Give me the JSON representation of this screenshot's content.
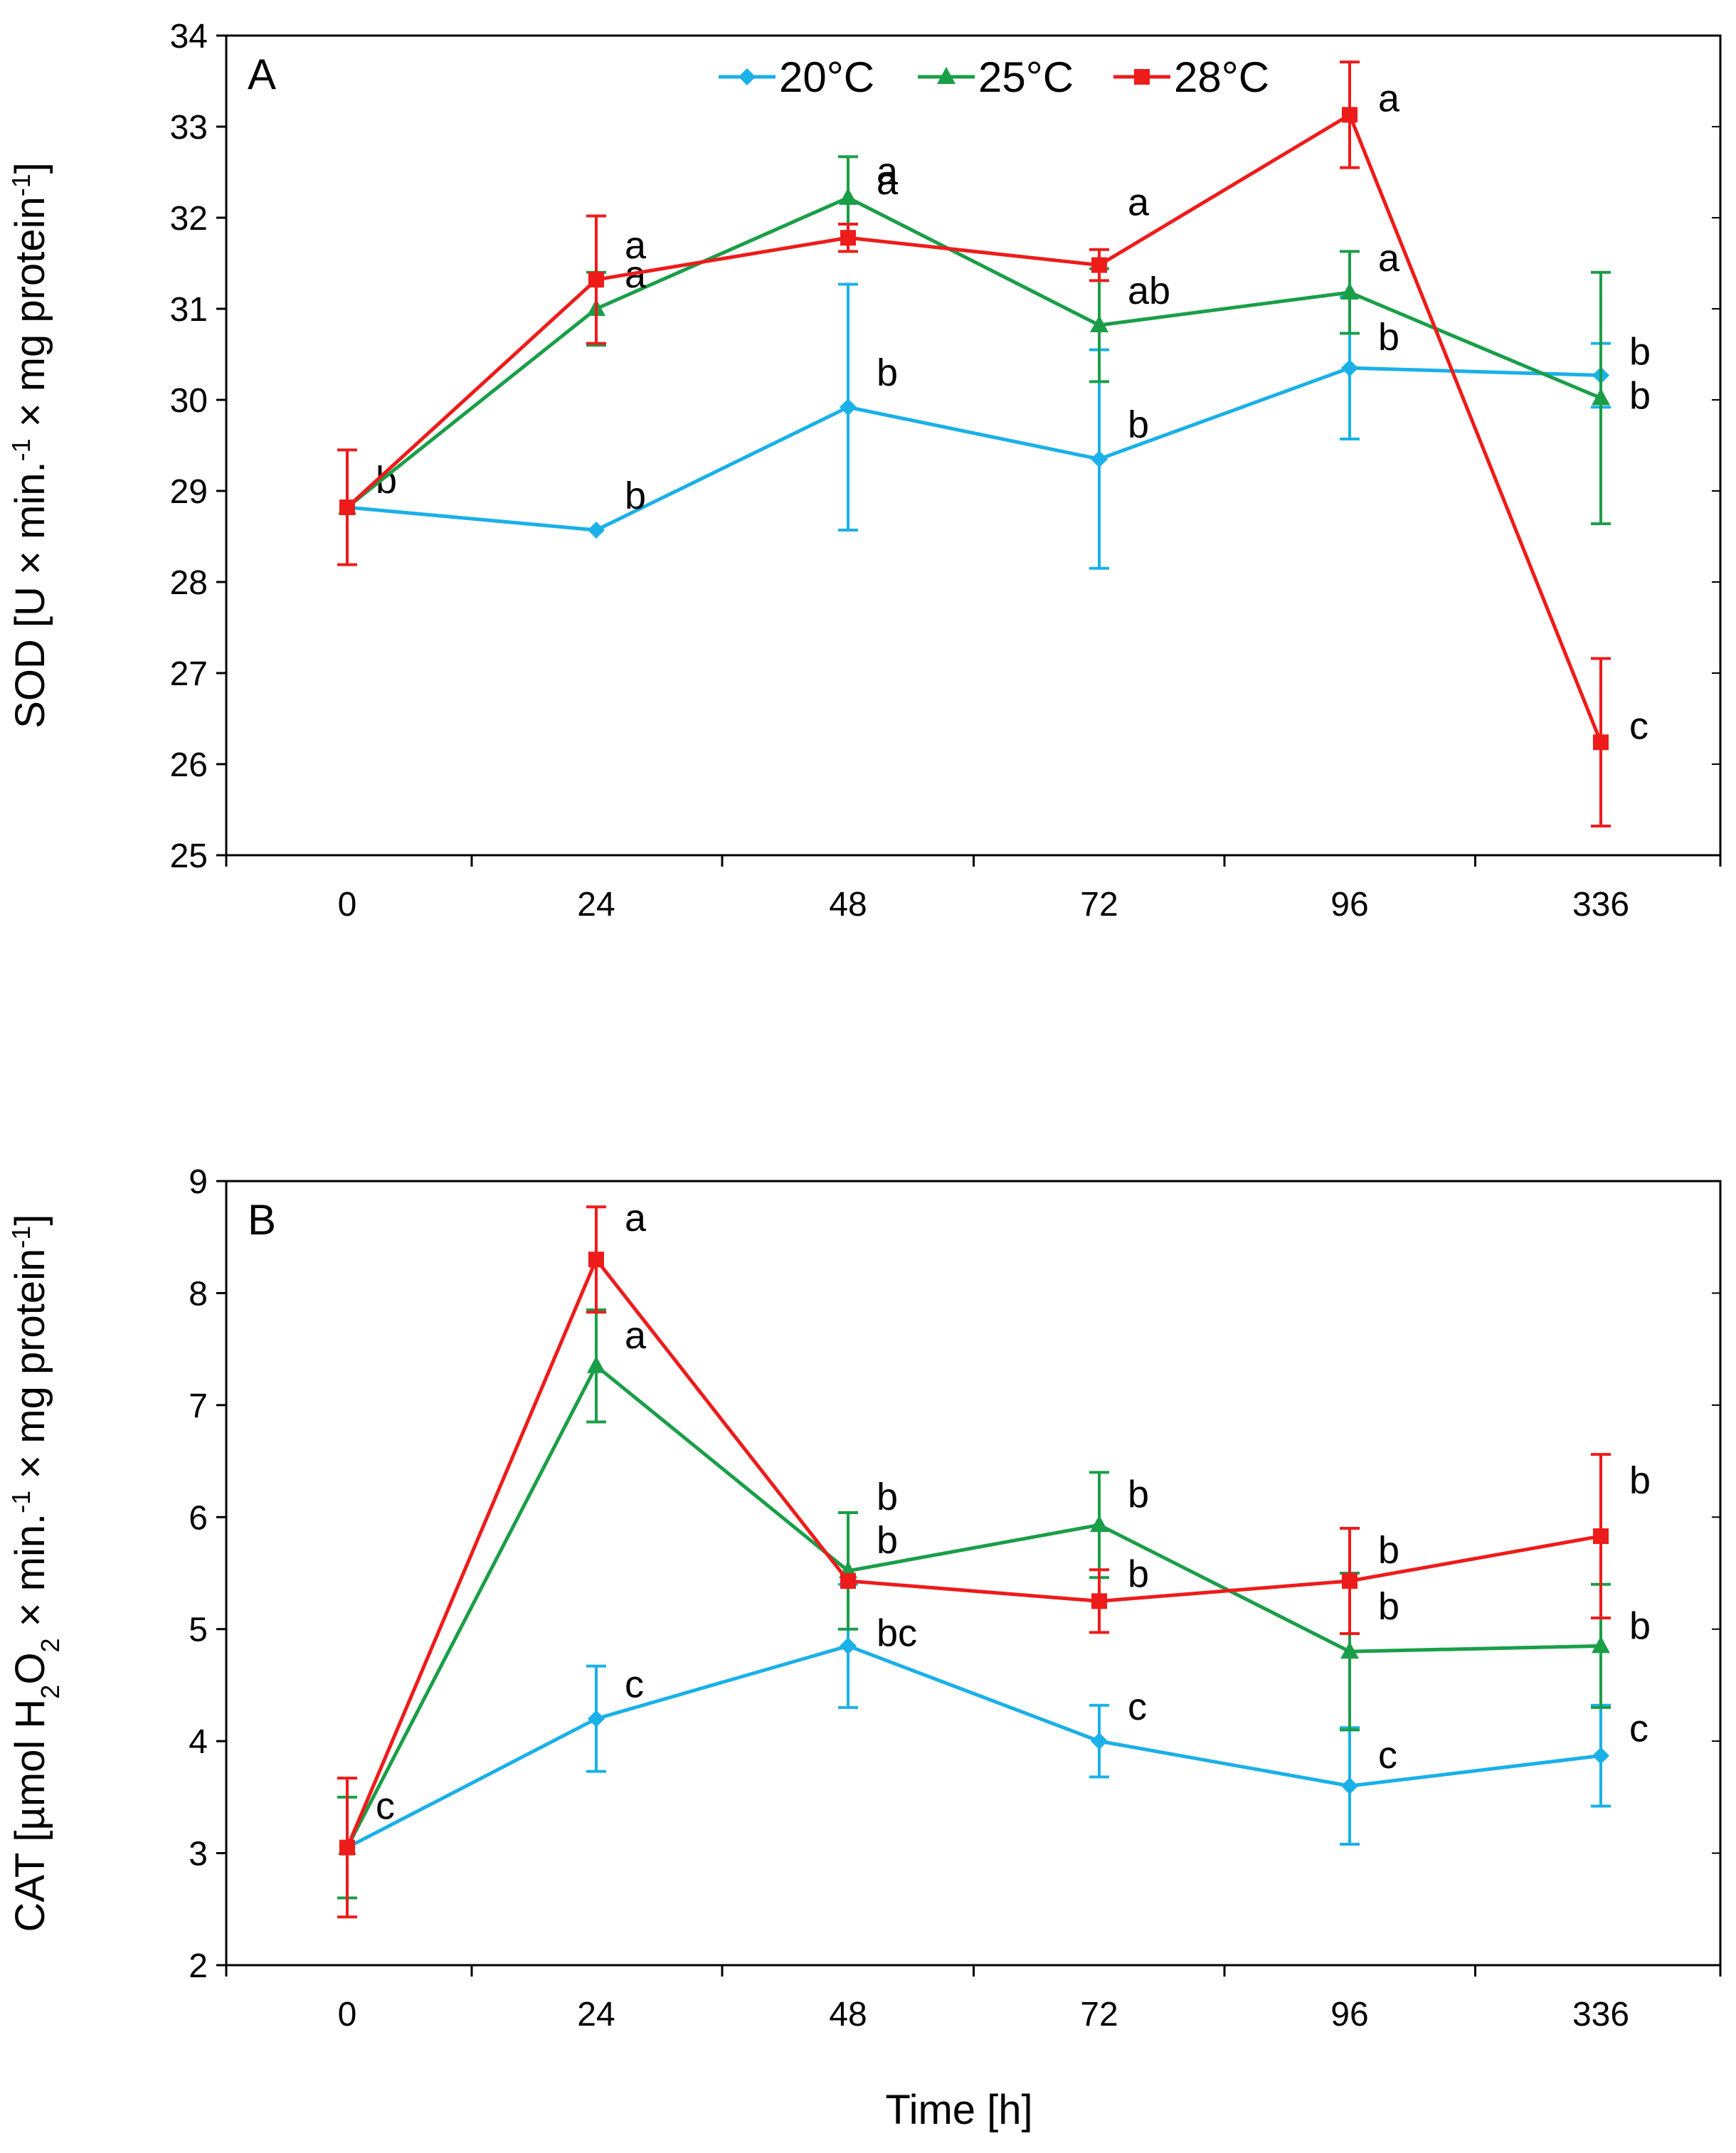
{
  "colors": {
    "20°C": "#1ab0e8",
    "25°C": "#1a9e48",
    "28°C": "#ee1b1b",
    "axis": "#000000"
  },
  "legend": [
    {
      "label": "20°C",
      "marker": "diamond"
    },
    {
      "label": "25°C",
      "marker": "triangle"
    },
    {
      "label": "28°C",
      "marker": "square"
    }
  ],
  "chart_data": [
    {
      "type": "line",
      "panel": "A",
      "ylabel_html": "SOD [U × min.<tspan baseline-shift=\"super\" font-size=\"36\">-1</tspan> × mg protein<tspan baseline-shift=\"super\" font-size=\"36\">-1</tspan>]",
      "xlabel": "",
      "categories": [
        "0",
        "24",
        "48",
        "72",
        "96",
        "336"
      ],
      "ylim": [
        25,
        34
      ],
      "yticks": [
        25,
        26,
        27,
        28,
        29,
        30,
        31,
        32,
        33,
        34
      ],
      "grid": false,
      "legend_position": "top",
      "series": [
        {
          "name": "20°C",
          "values": [
            28.82,
            28.57,
            29.92,
            29.35,
            30.35,
            30.27
          ],
          "errors": [
            0,
            0,
            1.35,
            1.2,
            0.78,
            0.35
          ],
          "labels": [
            "b",
            "b",
            "b",
            "b",
            "b",
            "b"
          ]
        },
        {
          "name": "25°C",
          "values": [
            28.82,
            31.0,
            32.22,
            30.82,
            31.18,
            30.02
          ],
          "errors": [
            0,
            0.4,
            0.45,
            0.62,
            0.45,
            1.38
          ],
          "labels": [
            "",
            "a",
            "a",
            "ab",
            "a",
            "b"
          ]
        },
        {
          "name": "28°C",
          "values": [
            28.82,
            31.32,
            31.78,
            31.48,
            33.13,
            26.24
          ],
          "errors": [
            0.63,
            0.7,
            0.15,
            0.17,
            0.58,
            0.92
          ],
          "labels": [
            "",
            "a",
            "a",
            "a",
            "a",
            "c"
          ]
        }
      ]
    },
    {
      "type": "line",
      "panel": "B",
      "ylabel_html": "CAT [µmol H<tspan baseline-shift=\"sub\" font-size=\"36\">2</tspan>O<tspan baseline-shift=\"sub\" font-size=\"36\">2</tspan> × min.<tspan baseline-shift=\"super\" font-size=\"36\">-1</tspan> × mg protein<tspan baseline-shift=\"super\" font-size=\"36\">-1</tspan>]",
      "xlabel": "Time [h]",
      "categories": [
        "0",
        "24",
        "48",
        "72",
        "96",
        "336"
      ],
      "ylim": [
        2,
        9
      ],
      "yticks": [
        2,
        3,
        4,
        5,
        6,
        7,
        8,
        9
      ],
      "grid": false,
      "series": [
        {
          "name": "20°C",
          "values": [
            3.05,
            4.2,
            4.85,
            4.0,
            3.6,
            3.87
          ],
          "errors": [
            0,
            0.47,
            0.55,
            0.32,
            0.52,
            0.45
          ],
          "labels": [
            "c",
            "c",
            "bc",
            "c",
            "c",
            "c"
          ]
        },
        {
          "name": "25°C",
          "values": [
            3.05,
            7.35,
            5.52,
            5.93,
            4.8,
            4.85
          ],
          "errors": [
            0.45,
            0.5,
            0.52,
            0.47,
            0.7,
            0.55
          ],
          "labels": [
            "",
            "a",
            "b",
            "b",
            "b",
            "b"
          ]
        },
        {
          "name": "28°C",
          "values": [
            3.05,
            8.3,
            5.43,
            5.25,
            5.43,
            5.83
          ],
          "errors": [
            0.62,
            0.47,
            0,
            0.28,
            0.47,
            0.73
          ],
          "labels": [
            "",
            "a",
            "b",
            "b",
            "b",
            "b"
          ]
        }
      ]
    }
  ]
}
